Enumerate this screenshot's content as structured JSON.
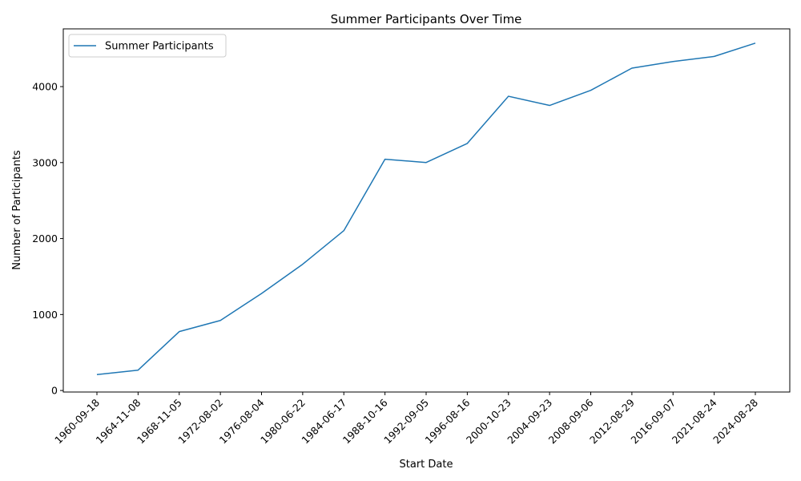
{
  "chart_data": {
    "type": "line",
    "title": "Summer Participants Over Time",
    "xlabel": "Start Date",
    "ylabel": "Number of Participants",
    "categories": [
      "1960-09-18",
      "1964-11-08",
      "1968-11-05",
      "1972-08-02",
      "1976-08-04",
      "1980-06-22",
      "1984-06-17",
      "1988-10-16",
      "1992-09-05",
      "1996-08-16",
      "2000-10-23",
      "2004-09-23",
      "2008-09-06",
      "2012-08-29",
      "2016-09-07",
      "2021-08-24",
      "2024-08-28"
    ],
    "series": [
      {
        "name": "Summer Participants",
        "values": [
          209,
          268,
          775,
          922,
          1277,
          1662,
          2104,
          3044,
          3001,
          3252,
          3873,
          3752,
          3951,
          4243,
          4330,
          4397,
          4572
        ],
        "color": "#1f77b4"
      }
    ],
    "yticks": [
      0,
      1000,
      2000,
      3000,
      4000
    ],
    "ylim": [
      -20,
      4760
    ],
    "grid": false,
    "legend": "top-left"
  }
}
